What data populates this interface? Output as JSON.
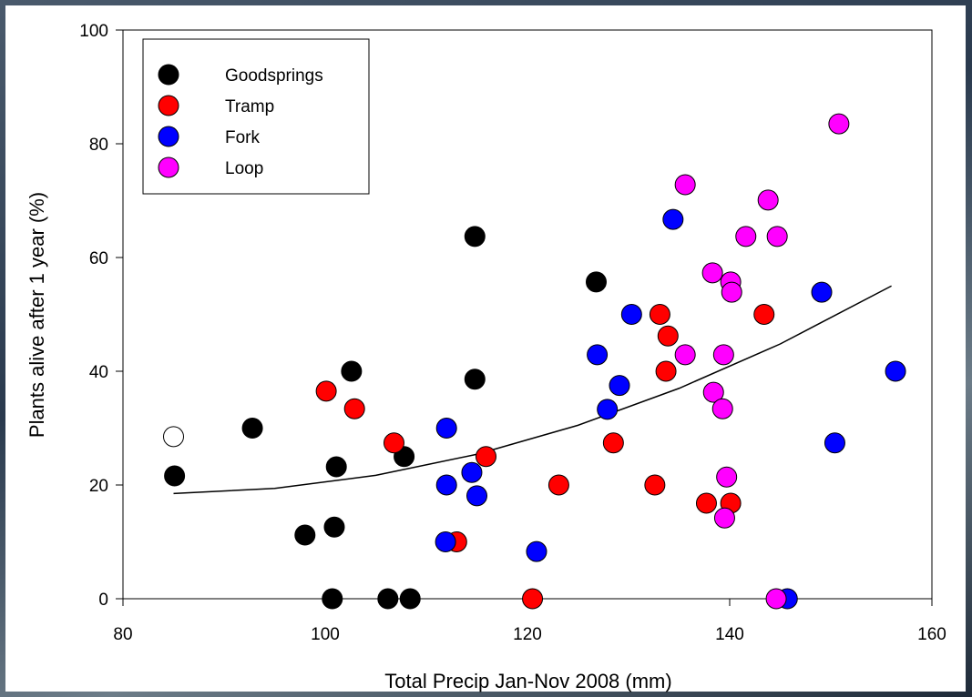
{
  "chart_data": {
    "type": "scatter",
    "xlabel": "Total Precip Jan-Nov 2008 (mm)",
    "ylabel": "Plants alive after 1 year (%)",
    "xlim": [
      80,
      160
    ],
    "xticks": [
      80,
      100,
      120,
      140,
      160
    ],
    "ylim": [
      0,
      100
    ],
    "yticks": [
      0,
      20,
      40,
      60,
      80,
      100
    ],
    "grid": false,
    "legend": "upper left",
    "series": [
      {
        "name": "Goodsprings",
        "color": "#000000",
        "x": [
          85.1,
          92.8,
          98.0,
          100.9,
          100.7,
          101.1,
          102.6,
          106.2,
          107.8,
          108.4,
          114.8,
          114.8,
          126.8
        ],
        "values": [
          21.6,
          30,
          11.2,
          12.6,
          0,
          23.2,
          40,
          0,
          25,
          0,
          63.7,
          38.6,
          55.7
        ]
      },
      {
        "name": "Tramp",
        "color": "#ff0000",
        "x": [
          100.1,
          102.9,
          106.8,
          113.0,
          115.9,
          120.5,
          123.1,
          128.5,
          132.6,
          133.1,
          133.9,
          133.7,
          137.7,
          140.1,
          143.4
        ],
        "values": [
          36.5,
          33.4,
          27.4,
          10,
          25,
          0,
          20,
          27.4,
          20,
          50,
          46.2,
          40,
          16.8,
          16.8,
          50
        ]
      },
      {
        "name": "Fork",
        "color": "#0000ff",
        "x": [
          112.0,
          112.0,
          111.9,
          114.5,
          115.0,
          120.9,
          126.9,
          127.9,
          129.1,
          130.3,
          134.4,
          145.7,
          149.1,
          150.4,
          156.4
        ],
        "values": [
          30,
          20,
          10,
          22.2,
          18.1,
          8.3,
          42.9,
          33.3,
          37.5,
          50,
          66.7,
          0,
          53.9,
          27.4,
          40
        ]
      },
      {
        "name": "Loop",
        "color": "#ff00ff",
        "x": [
          135.6,
          135.6,
          138.3,
          138.4,
          139.3,
          139.4,
          139.7,
          139.5,
          140.1,
          140.2,
          141.6,
          143.8,
          144.6,
          144.7,
          150.8
        ],
        "values": [
          72.8,
          42.9,
          57.3,
          36.3,
          33.4,
          42.9,
          21.4,
          14.2,
          55.7,
          53.9,
          63.7,
          70.1,
          0,
          63.7,
          83.5
        ]
      },
      {
        "color": "#ffffff",
        "x": [
          85.0
        ],
        "values": [
          28.5
        ]
      }
    ],
    "trend": {
      "color": "#000000",
      "x": [
        85,
        95,
        105,
        115,
        125,
        135,
        145,
        156
      ],
      "values": [
        18.5,
        19.4,
        21.7,
        25.4,
        30.5,
        37.0,
        44.8,
        55.0
      ]
    }
  }
}
